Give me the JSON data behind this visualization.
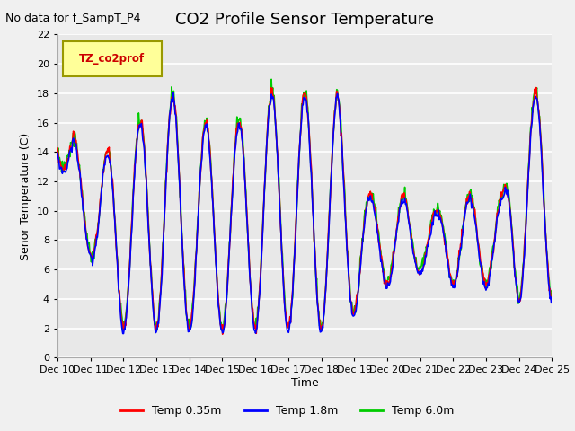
{
  "title": "CO2 Profile Sensor Temperature",
  "subtitle": "No data for f_SampT_P4",
  "ylabel": "Senor Temperature (C)",
  "xlabel": "Time",
  "legend_label": "TZ_co2prof",
  "ylim": [
    0,
    22
  ],
  "yticks": [
    0,
    2,
    4,
    6,
    8,
    10,
    12,
    14,
    16,
    18,
    20,
    22
  ],
  "xtick_labels": [
    "Dec 10",
    "Dec 11",
    "Dec 12",
    "Dec 13",
    "Dec 14",
    "Dec 15",
    "Dec 16",
    "Dec 17",
    "Dec 18",
    "Dec 19",
    "Dec 20",
    "Dec 21",
    "Dec 22",
    "Dec 23",
    "Dec 24",
    "Dec 25"
  ],
  "series_colors": [
    "#ff0000",
    "#0000ff",
    "#00cc00"
  ],
  "series_labels": [
    "Temp 0.35m",
    "Temp 1.8m",
    "Temp 6.0m"
  ],
  "background_color": "#e8e8e8",
  "grid_color": "#ffffff",
  "legend_box_color": "#ffff99",
  "legend_box_edge": "#999900",
  "title_fontsize": 13,
  "subtitle_fontsize": 9,
  "axis_label_fontsize": 9,
  "tick_fontsize": 8
}
